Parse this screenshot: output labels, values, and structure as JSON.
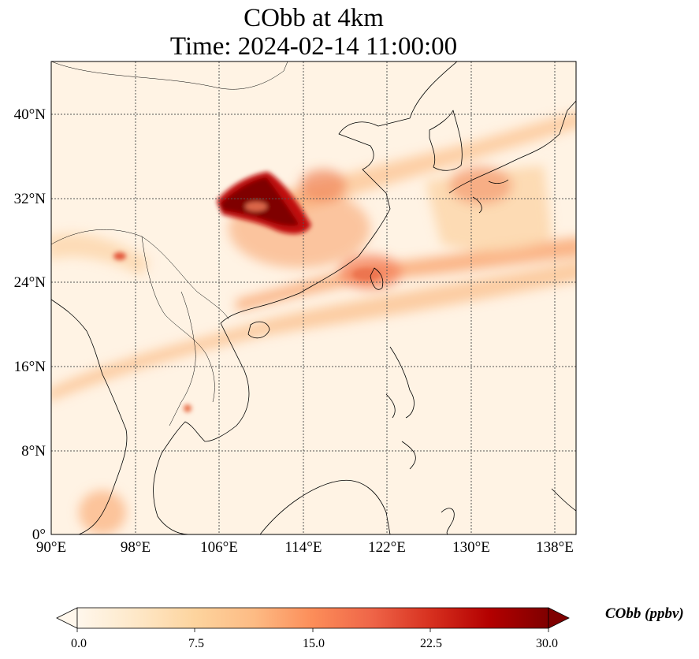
{
  "title": {
    "line1": "CObb at 4km",
    "line2": "Time: 2024-02-14 11:00:00"
  },
  "map": {
    "variable": "CObb",
    "level": "4km",
    "extent": {
      "lon": [
        90,
        140
      ],
      "lat": [
        0,
        45
      ]
    },
    "lon_ticks": [
      "90°E",
      "98°E",
      "106°E",
      "114°E",
      "122°E",
      "130°E",
      "138°E"
    ],
    "lat_ticks": [
      "0°",
      "8°N",
      "16°N",
      "24°N",
      "32°N",
      "40°N"
    ],
    "gridlines": "dotted",
    "colormap": "OrRd",
    "background_color": "#fff3e4"
  },
  "colorbar": {
    "label": "CObb (ppbv)",
    "ticks": [
      "0.0",
      "7.5",
      "15.0",
      "22.5",
      "30.0"
    ],
    "range": [
      0,
      30
    ],
    "extend": "both",
    "colors": [
      "#fff7ec",
      "#fee8c8",
      "#fdd49e",
      "#fdbb84",
      "#fc8d59",
      "#ef6548",
      "#d7301f",
      "#b30000",
      "#7f0000"
    ]
  }
}
